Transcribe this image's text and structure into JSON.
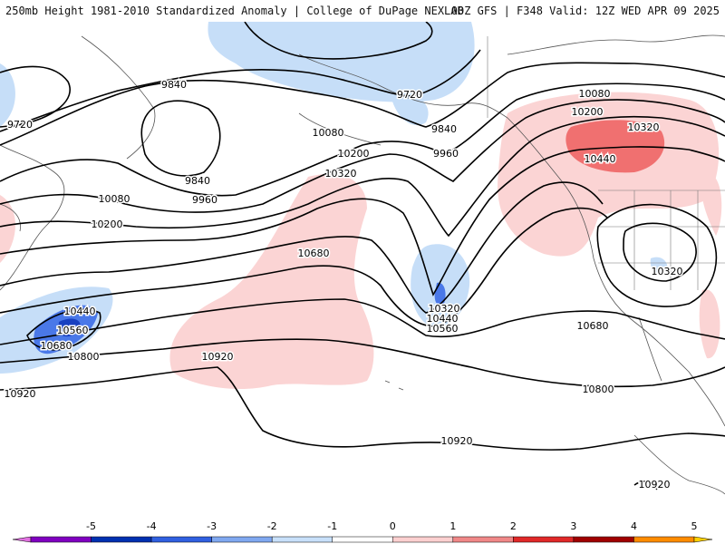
{
  "header": {
    "left_title": "250mb Height 1981-2010 Standardized Anomaly | College of DuPage NEXLAB",
    "right_title": "00Z GFS | F348 Valid: 12Z WED APR 09 2025"
  },
  "contour_labels": [
    "9720",
    "9840",
    "9720",
    "10080",
    "10200",
    "10080",
    "9840",
    "9960",
    "10080",
    "9840",
    "9720",
    "10200",
    "9960",
    "10320",
    "10320",
    "10440",
    "10200",
    "10080",
    "10440",
    "10560",
    "10680",
    "10680",
    "10320",
    "10440",
    "10560",
    "10680",
    "10320",
    "10800",
    "10800",
    "10920",
    "10920",
    "10920",
    "10920"
  ],
  "colorbar": {
    "ticks": [
      "-5",
      "-4",
      "-3",
      "-2",
      "-1",
      "0",
      "1",
      "2",
      "3",
      "4",
      "5"
    ],
    "colors": [
      "#e070e0",
      "#8000c0",
      "#0030b0",
      "#3060e0",
      "#80a8f0",
      "#c8e0fa",
      "#ffffff",
      "#fcd0d0",
      "#f08888",
      "#e02828",
      "#a00000",
      "#ff8c00",
      "#ffd000"
    ]
  },
  "palette": {
    "positive_light": "#fbd4d4",
    "positive_mid": "#f07070",
    "negative_light": "#c6def8",
    "negative_mid": "#4a78e8",
    "negative_dark": "#1840c0",
    "contour": "#000000",
    "coast": "#555555"
  }
}
